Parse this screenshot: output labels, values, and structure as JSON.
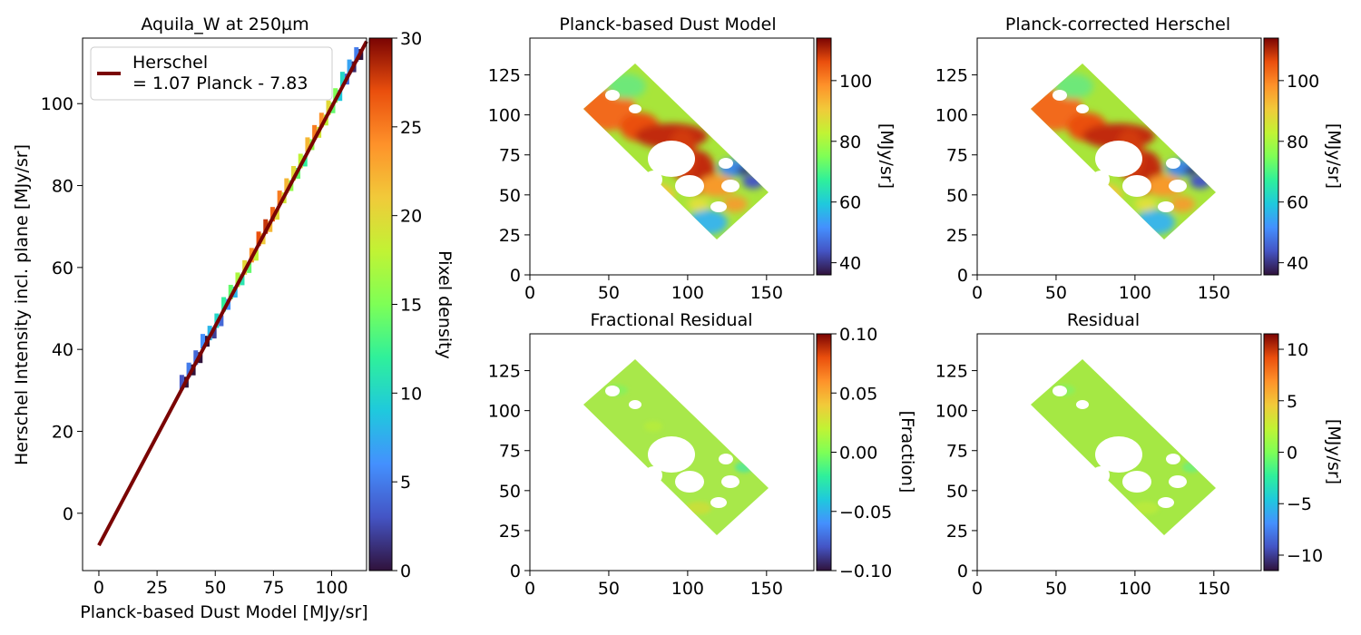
{
  "chart_data": [
    {
      "type": "scatter",
      "title": "Aquila_W at 250µm",
      "xlabel": "Planck-based Dust Model [MJy/sr]",
      "ylabel": "Herschel Intensity incl. plane [MJy/sr]",
      "xlim": [
        -7,
        115
      ],
      "ylim": [
        -14,
        116
      ],
      "xticks": [
        0,
        25,
        50,
        75,
        100
      ],
      "yticks": [
        0,
        20,
        40,
        60,
        80,
        100
      ],
      "legend": {
        "position": "upper-left",
        "label_line1": "Herschel",
        "label_line2": "= 1.07 Planck - 7.83"
      },
      "fit": {
        "slope": 1.07,
        "intercept": -7.83,
        "x_range": [
          0,
          115
        ],
        "color": "#7a0403"
      },
      "colorbar": {
        "label": "Pixel density",
        "min": 0,
        "max": 30,
        "ticks": [
          0,
          5,
          10,
          15,
          20,
          25,
          30
        ]
      },
      "density_points": [
        {
          "x": 37,
          "y": 32,
          "d": 3
        },
        {
          "x": 40,
          "y": 35,
          "d": 5
        },
        {
          "x": 43,
          "y": 38,
          "d": 4
        },
        {
          "x": 46,
          "y": 42,
          "d": 6
        },
        {
          "x": 49,
          "y": 44,
          "d": 8
        },
        {
          "x": 52,
          "y": 47,
          "d": 10
        },
        {
          "x": 55,
          "y": 51,
          "d": 12
        },
        {
          "x": 58,
          "y": 54,
          "d": 14
        },
        {
          "x": 61,
          "y": 57,
          "d": 17
        },
        {
          "x": 64,
          "y": 60,
          "d": 20
        },
        {
          "x": 67,
          "y": 63,
          "d": 24
        },
        {
          "x": 70,
          "y": 67,
          "d": 27
        },
        {
          "x": 73,
          "y": 70,
          "d": 28
        },
        {
          "x": 76,
          "y": 73,
          "d": 26
        },
        {
          "x": 79,
          "y": 77,
          "d": 25
        },
        {
          "x": 82,
          "y": 80,
          "d": 22
        },
        {
          "x": 85,
          "y": 83,
          "d": 20
        },
        {
          "x": 88,
          "y": 86,
          "d": 18
        },
        {
          "x": 91,
          "y": 90,
          "d": 22
        },
        {
          "x": 94,
          "y": 93,
          "d": 25
        },
        {
          "x": 97,
          "y": 96,
          "d": 24
        },
        {
          "x": 100,
          "y": 99,
          "d": 20
        },
        {
          "x": 103,
          "y": 102,
          "d": 15
        },
        {
          "x": 106,
          "y": 106,
          "d": 10
        },
        {
          "x": 109,
          "y": 109,
          "d": 7
        },
        {
          "x": 112,
          "y": 112,
          "d": 5
        }
      ]
    },
    {
      "type": "heatmap",
      "title": "Planck-based Dust Model",
      "colorbar_label": "[MJy/sr]",
      "xlim": [
        0,
        180
      ],
      "ylim": [
        0,
        148
      ],
      "xticks": [
        0,
        50,
        100,
        150
      ],
      "yticks": [
        0,
        25,
        50,
        75,
        100,
        125
      ],
      "cbar": {
        "min": 36,
        "max": 114,
        "ticks": [
          40,
          60,
          80,
          100
        ],
        "tick_labels": [
          "40",
          "60",
          "80",
          "100"
        ]
      }
    },
    {
      "type": "heatmap",
      "title": "Planck-corrected Herschel",
      "colorbar_label": "[MJy/sr]",
      "xlim": [
        0,
        180
      ],
      "ylim": [
        0,
        148
      ],
      "xticks": [
        0,
        50,
        100,
        150
      ],
      "yticks": [
        0,
        25,
        50,
        75,
        100,
        125
      ],
      "cbar": {
        "min": 36,
        "max": 114,
        "ticks": [
          40,
          60,
          80,
          100
        ],
        "tick_labels": [
          "40",
          "60",
          "80",
          "100"
        ]
      }
    },
    {
      "type": "heatmap",
      "title": "Fractional Residual",
      "colorbar_label": "[Fraction]",
      "xlim": [
        0,
        180
      ],
      "ylim": [
        0,
        148
      ],
      "xticks": [
        0,
        50,
        100,
        150
      ],
      "yticks": [
        0,
        25,
        50,
        75,
        100,
        125
      ],
      "cbar": {
        "min": -0.1,
        "max": 0.1,
        "ticks": [
          -0.1,
          -0.05,
          0,
          0.05,
          0.1
        ],
        "tick_labels": [
          "−0.10",
          "−0.05",
          "0.00",
          "0.05",
          "0.10"
        ]
      }
    },
    {
      "type": "heatmap",
      "title": "Residual",
      "colorbar_label": "[MJy/sr]",
      "xlim": [
        0,
        180
      ],
      "ylim": [
        0,
        148
      ],
      "xticks": [
        0,
        50,
        100,
        150
      ],
      "yticks": [
        0,
        25,
        50,
        75,
        100,
        125
      ],
      "cbar": {
        "min": -11.5,
        "max": 11.5,
        "ticks": [
          -10,
          -5,
          0,
          5,
          10
        ],
        "tick_labels": [
          "−10",
          "−5",
          "0",
          "5",
          "10"
        ]
      }
    }
  ]
}
